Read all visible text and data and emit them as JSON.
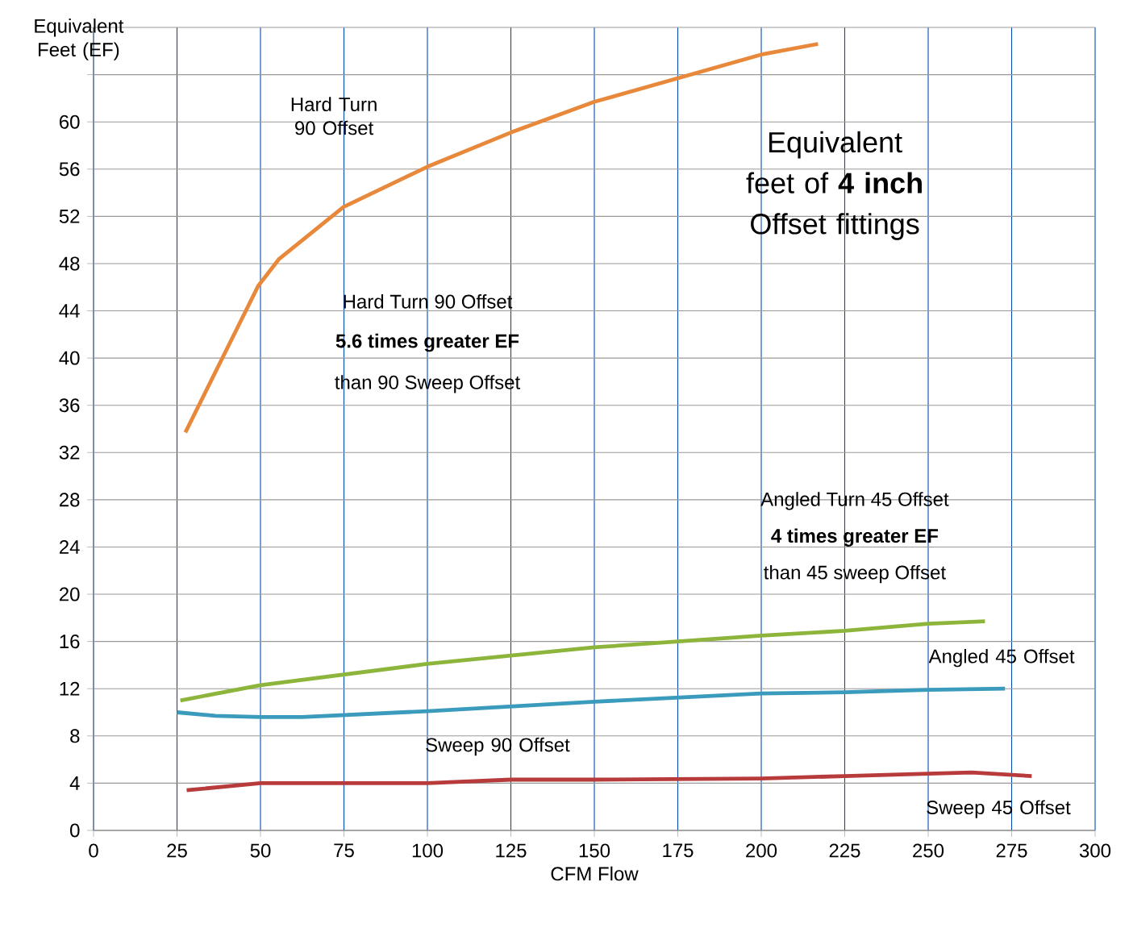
{
  "chart_data": {
    "type": "line",
    "title": "Equivalent feet of **4 inch** Offset fittings",
    "xlabel": "CFM Flow",
    "ylabel": "Equivalent Feet (EF)",
    "xlim": [
      0,
      300
    ],
    "xticks": [
      0,
      25,
      50,
      75,
      100,
      125,
      150,
      175,
      200,
      225,
      250,
      275,
      300
    ],
    "ylim": [
      0,
      68
    ],
    "yticks": [
      0,
      4,
      8,
      12,
      16,
      20,
      24,
      28,
      32,
      36,
      40,
      44,
      48,
      52,
      56,
      60,
      {
        "value": 64,
        "label": null
      },
      {
        "value": 68,
        "label": null
      }
    ],
    "grid": true,
    "series": [
      {
        "name": "Hard Turn 90 Offset",
        "color": "#e8883a",
        "x": [
          27.5,
          49.3,
          55.6,
          74.9,
          100,
          125,
          150,
          175,
          200,
          217
        ],
        "values": [
          33.7,
          46.1,
          48.4,
          52.8,
          56.2,
          59.1,
          61.7,
          63.7,
          65.7,
          66.6
        ]
      },
      {
        "name": "Angled 45 Offset",
        "color": "#8db53c",
        "x": [
          26,
          50,
          100,
          150,
          175,
          200,
          225,
          250,
          267
        ],
        "values": [
          11.0,
          12.3,
          14.1,
          15.5,
          16.0,
          16.5,
          16.9,
          17.5,
          17.7
        ]
      },
      {
        "name": "Sweep 90 Offset",
        "color": "#3a9bbd",
        "x": [
          25,
          36.5,
          50,
          62.5,
          100,
          150,
          200,
          225,
          250,
          273
        ],
        "values": [
          10.0,
          9.7,
          9.6,
          9.6,
          10.1,
          10.9,
          11.6,
          11.7,
          11.9,
          12.0
        ]
      },
      {
        "name": "Sweep 45 Offset",
        "color": "#b83b3b",
        "x": [
          27.9,
          50,
          75,
          100,
          125,
          150,
          200,
          225,
          250,
          263,
          281
        ],
        "values": [
          3.4,
          4.0,
          4.0,
          4.0,
          4.3,
          4.3,
          4.4,
          4.6,
          4.8,
          4.9,
          4.6
        ]
      }
    ],
    "annotations": [
      "Hard Turn 90 Offset",
      "**5.6 times greater EF**",
      "than 90 Sweep Offset",
      "Angled Turn 45 Offset",
      "**4 times greater EF**",
      "than 45 sweep Offset"
    ]
  }
}
